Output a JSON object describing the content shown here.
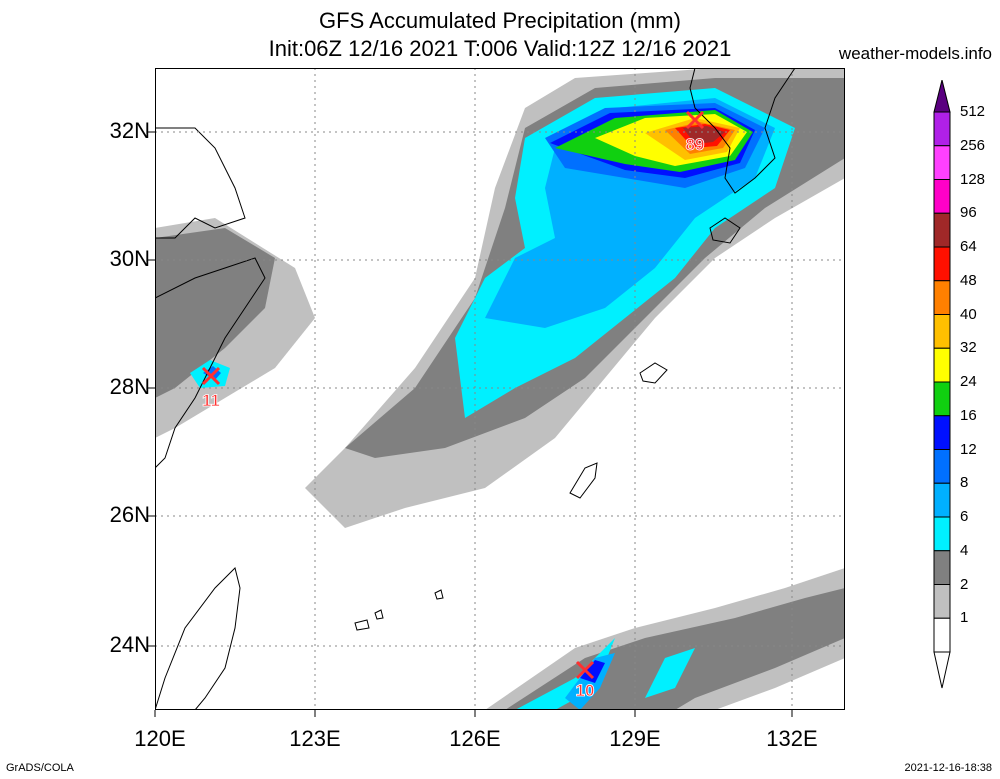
{
  "header": {
    "title": "GFS Accumulated Precipitation (mm)",
    "subtitle": "Init:06Z 12/16 2021 T:006 Valid:12Z 12/16 2021",
    "site": "weather-models.info"
  },
  "axes": {
    "lat_labels": [
      "32N",
      "30N",
      "28N",
      "26N",
      "24N"
    ],
    "lon_labels": [
      "120E",
      "123E",
      "126E",
      "129E",
      "132E"
    ]
  },
  "markers": [
    {
      "label": "89",
      "lon": 130.3,
      "lat": 32.2
    },
    {
      "label": "11",
      "lon": 121.1,
      "lat": 28.2
    },
    {
      "label": "10",
      "lon": 128.2,
      "lat": 23.6
    }
  ],
  "colorbar": {
    "labels": [
      "512",
      "256",
      "128",
      "96",
      "64",
      "48",
      "40",
      "32",
      "24",
      "16",
      "12",
      "8",
      "6",
      "4",
      "2",
      "1"
    ],
    "colors": [
      "#8b00d0",
      "#b020e8",
      "#ff40ff",
      "#ff00c8",
      "#a02828",
      "#ff1000",
      "#ff8000",
      "#ffc000",
      "#ffff00",
      "#10d010",
      "#0010ff",
      "#0070ff",
      "#00b0ff",
      "#00f0ff",
      "#808080",
      "#c0c0c0",
      "#ffffff"
    ]
  },
  "footer": {
    "left": "GrADS/COLA",
    "right": "2021-12-16-18:38"
  }
}
